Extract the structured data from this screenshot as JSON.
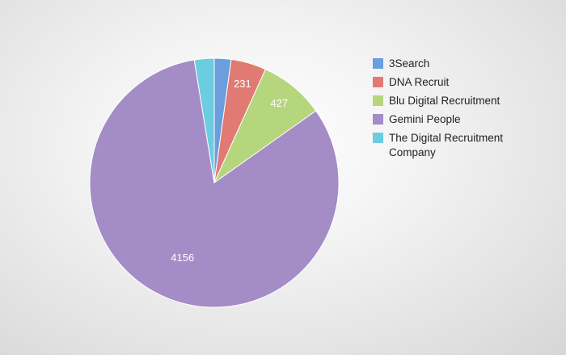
{
  "chart_data": {
    "type": "pie",
    "title": "",
    "categories": [
      "3Search",
      "DNA Recruit",
      "Blu Digital Recruitment",
      "Gemini People",
      "The Digital Recruitment Company"
    ],
    "values": [
      110,
      231,
      427,
      4156,
      130
    ],
    "data_labels": [
      "",
      "231",
      "427",
      "4156",
      ""
    ],
    "colors": [
      "#6a9edc",
      "#e07a72",
      "#b5d67c",
      "#a48cc6",
      "#6ccce0"
    ],
    "legend_position": "right",
    "start_angle_deg": 0,
    "direction": "clockwise"
  }
}
